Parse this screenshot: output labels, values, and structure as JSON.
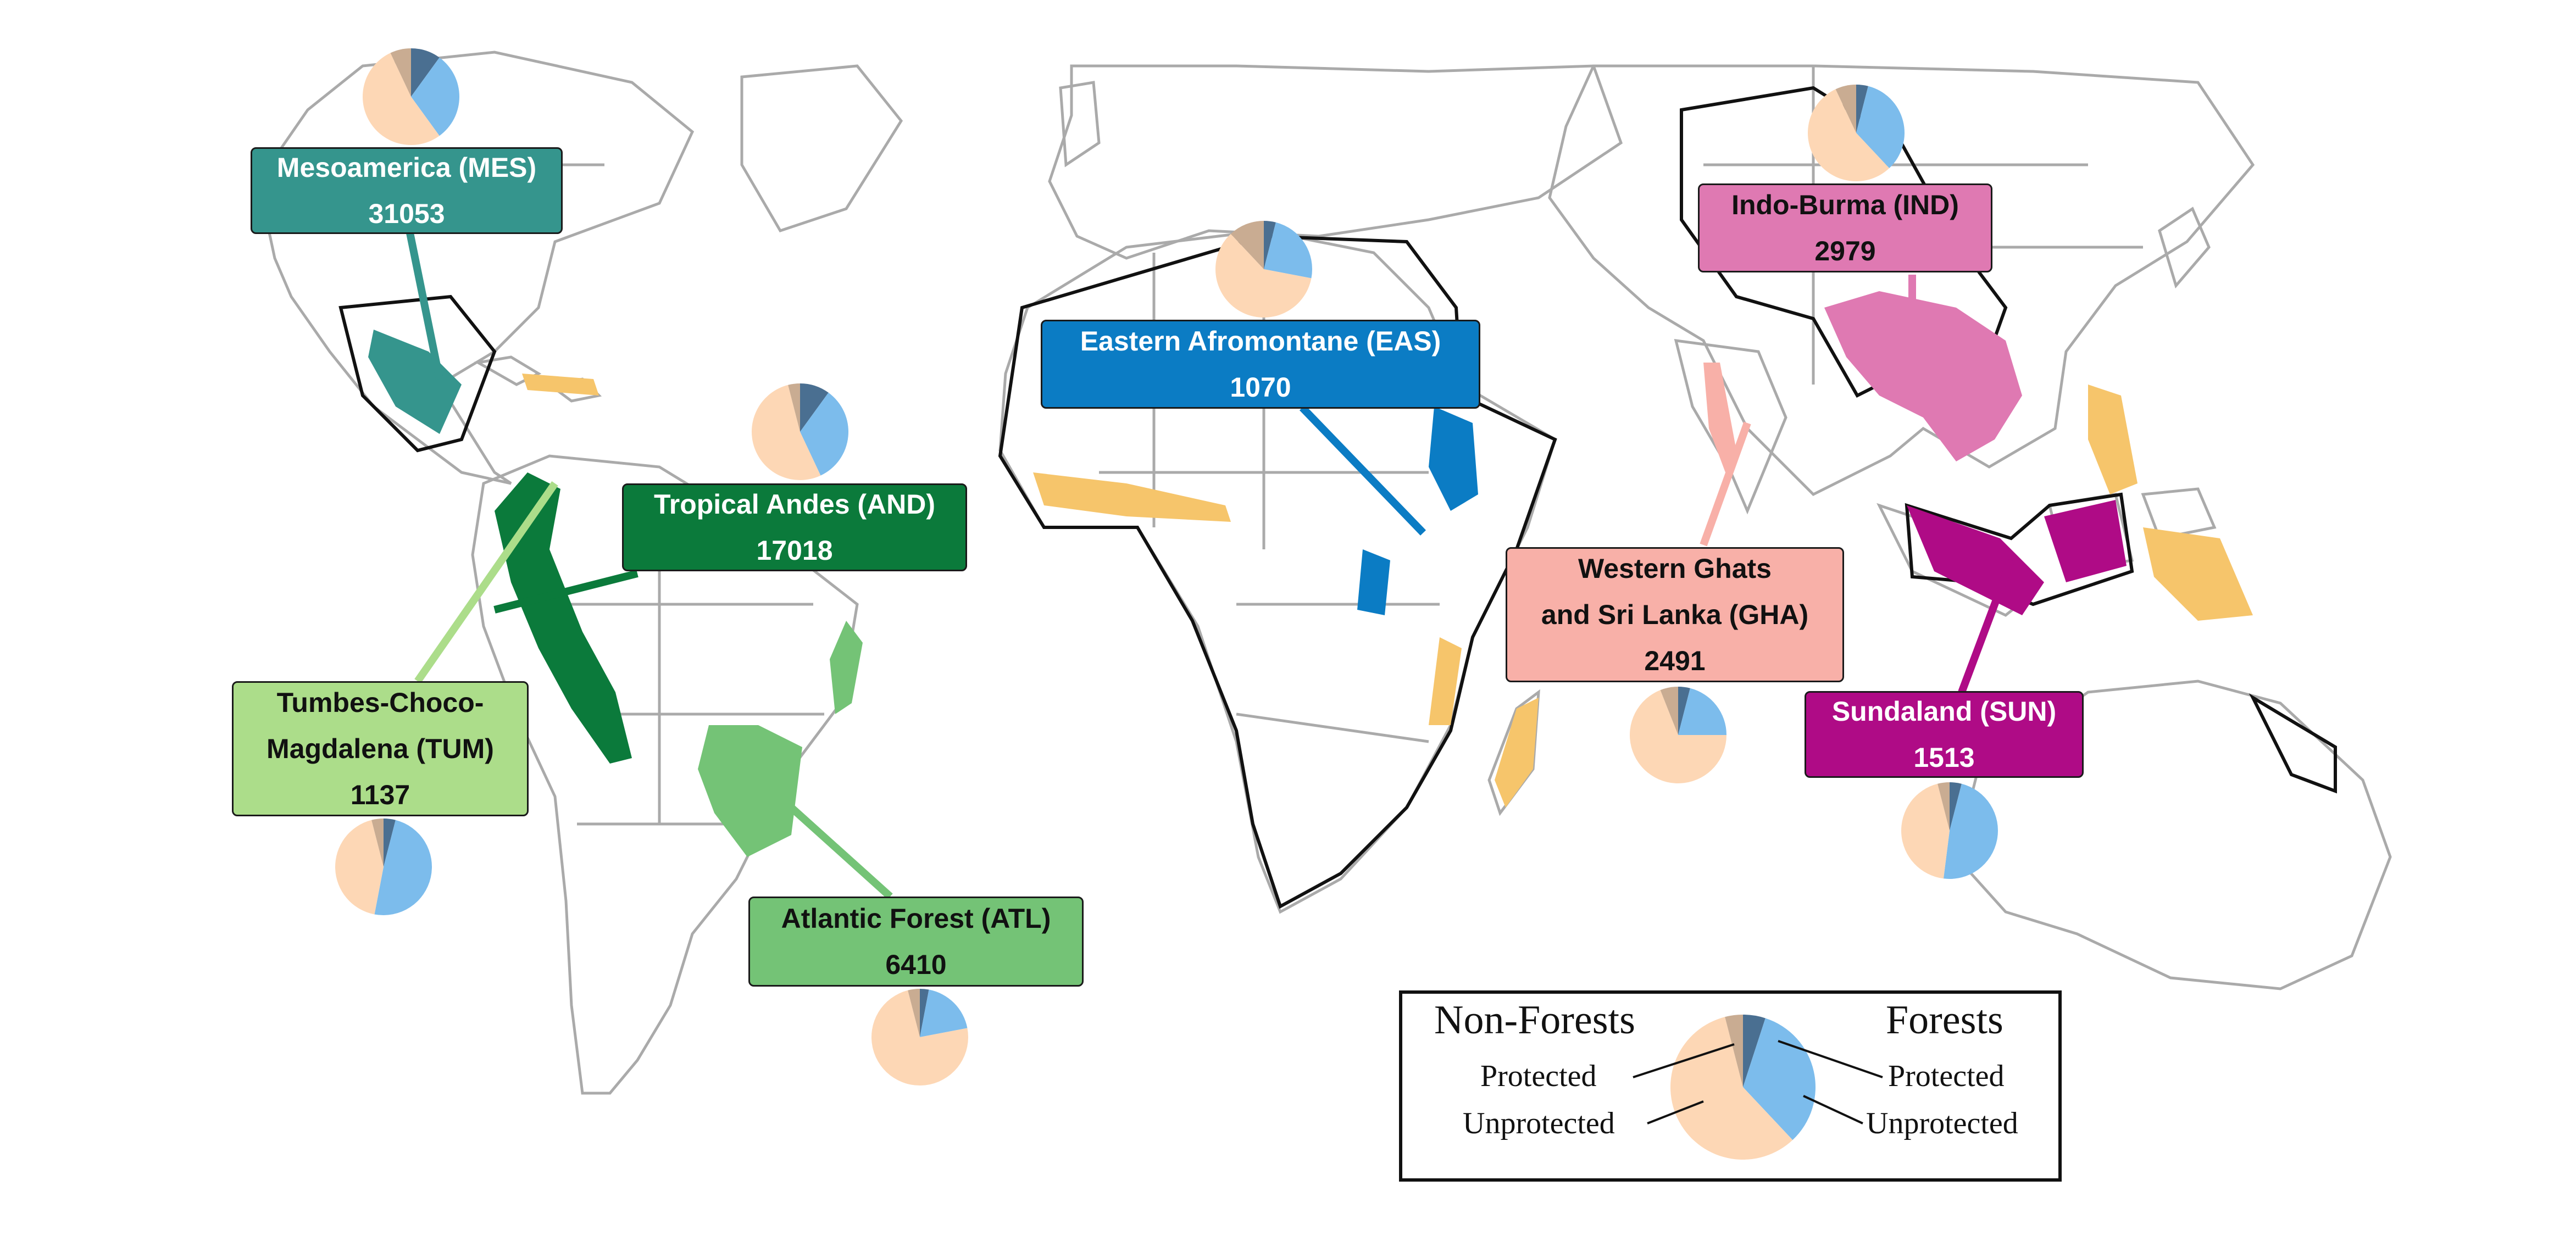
{
  "colors": {
    "forest_protected": "#4a6f91",
    "forest_unprotected": "#7cbcec",
    "nonforest_protected": "#c9ac92",
    "nonforest_unprotected": "#fdd7b5",
    "coastline": "#aaaaaa",
    "hotspot_outline": "#111111",
    "other_hotspots": "#f6c56b"
  },
  "hotspots": [
    {
      "id": "MES",
      "name": "Mesoamerica (MES)",
      "value": "31053",
      "fill": "#35958d",
      "text": "#ffffff",
      "pie": {
        "forest_protected": 0.1,
        "forest_unprotected": 0.3,
        "nonforest_unprotected": 0.53,
        "nonforest_protected": 0.07
      }
    },
    {
      "id": "AND",
      "name": "Tropical Andes (AND)",
      "value": "17018",
      "fill": "#0b7a3b",
      "text": "#ffffff",
      "pie": {
        "forest_protected": 0.1,
        "forest_unprotected": 0.33,
        "nonforest_unprotected": 0.53,
        "nonforest_protected": 0.04
      }
    },
    {
      "id": "TUM",
      "name_lines": [
        "Tumbes-Choco-",
        "Magdalena (TUM)"
      ],
      "value": "1137",
      "fill": "#acdd8a",
      "text": "#111111",
      "pie": {
        "forest_protected": 0.04,
        "forest_unprotected": 0.49,
        "nonforest_unprotected": 0.43,
        "nonforest_protected": 0.04
      }
    },
    {
      "id": "ATL",
      "name": "Atlantic Forest (ATL)",
      "value": "6410",
      "fill": "#74c376",
      "text": "#111111",
      "pie": {
        "forest_protected": 0.03,
        "forest_unprotected": 0.19,
        "nonforest_unprotected": 0.74,
        "nonforest_protected": 0.04
      }
    },
    {
      "id": "EAS",
      "name": "Eastern Afromontane (EAS)",
      "value": "1070",
      "fill": "#0b7cc4",
      "text": "#ffffff",
      "pie": {
        "forest_protected": 0.04,
        "forest_unprotected": 0.24,
        "nonforest_unprotected": 0.6,
        "nonforest_protected": 0.12
      }
    },
    {
      "id": "IND",
      "name": "Indo-Burma (IND)",
      "value": "2979",
      "fill": "#df79b2",
      "text": "#111111",
      "pie": {
        "forest_protected": 0.04,
        "forest_unprotected": 0.34,
        "nonforest_unprotected": 0.55,
        "nonforest_protected": 0.07
      }
    },
    {
      "id": "GHA",
      "name_lines": [
        "Western Ghats",
        "and Sri Lanka (GHA)"
      ],
      "value": "2491",
      "fill": "#f8b0a8",
      "text": "#111111",
      "pie": {
        "forest_protected": 0.04,
        "forest_unprotected": 0.21,
        "nonforest_unprotected": 0.69,
        "nonforest_protected": 0.06
      }
    },
    {
      "id": "SUN",
      "name": "Sundaland (SUN)",
      "value": "1513",
      "fill": "#af0b86",
      "text": "#ffffff",
      "pie": {
        "forest_protected": 0.04,
        "forest_unprotected": 0.48,
        "nonforest_unprotected": 0.44,
        "nonforest_protected": 0.04
      }
    }
  ],
  "legend": {
    "left_header": "Non-Forests",
    "right_header": "Forests",
    "left_protected": "Protected",
    "left_unprotected": "Unprotected",
    "right_protected": "Protected",
    "right_unprotected": "Unprotected",
    "pie": {
      "forest_protected": 0.05,
      "forest_unprotected": 0.33,
      "nonforest_unprotected": 0.58,
      "nonforest_protected": 0.04
    }
  }
}
